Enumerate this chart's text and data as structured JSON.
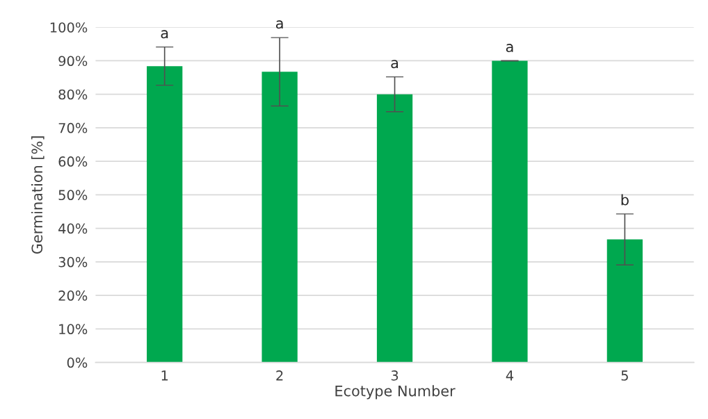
{
  "chart_data": {
    "type": "bar",
    "xlabel": "Ecotype Number",
    "ylabel": "Germination [%]",
    "categories": [
      "1",
      "2",
      "3",
      "4",
      "5"
    ],
    "values": [
      88.4,
      86.7,
      80.0,
      90.0,
      36.7
    ],
    "errors": [
      5.7,
      10.2,
      5.2,
      0,
      7.6
    ],
    "color": "#00a84f",
    "ylim": [
      0,
      100
    ],
    "yticks": [
      {
        "value": 0,
        "label": "0%"
      },
      {
        "value": 10,
        "label": "10%"
      },
      {
        "value": 20,
        "label": "20%"
      },
      {
        "value": 30,
        "label": "30%"
      },
      {
        "value": 40,
        "label": "40%"
      },
      {
        "value": 50,
        "label": "50%"
      },
      {
        "value": 60,
        "label": "60%"
      },
      {
        "value": 70,
        "label": "70%"
      },
      {
        "value": 80,
        "label": "80%"
      },
      {
        "value": 90,
        "label": "90%"
      },
      {
        "value": 100,
        "label": "100%"
      }
    ],
    "grid": "y",
    "annotations": [
      {
        "text": "a",
        "x": "1",
        "y": 94.1
      },
      {
        "text": "a",
        "x": "2",
        "y": 97.0
      },
      {
        "text": "a",
        "x": "3",
        "y": 85.2
      },
      {
        "text": "a",
        "x": "4",
        "y": 90.0
      },
      {
        "text": "b",
        "x": "5",
        "y": 44.3
      }
    ]
  }
}
